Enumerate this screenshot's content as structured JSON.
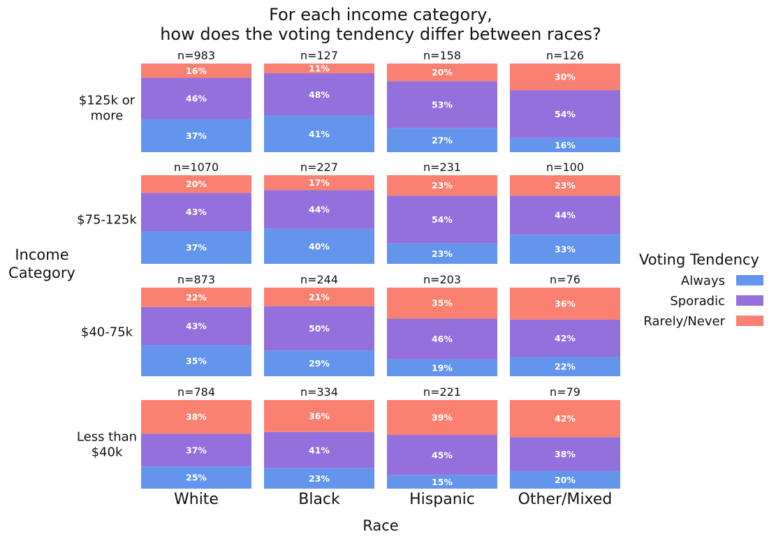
{
  "chart_data": {
    "type": "bar",
    "subtype": "faceted stacked 100% bar",
    "title_lines": [
      "For each income category,",
      "how does the voting tendency differ between races?"
    ],
    "xlabel": "Race",
    "ylabel_lines": [
      "Income",
      "Category"
    ],
    "columns": [
      "White",
      "Black",
      "Hispanic",
      "Other/Mixed"
    ],
    "rows": [
      {
        "label_lines": [
          "$125k or",
          "more"
        ]
      },
      {
        "label_lines": [
          "$75-125k"
        ]
      },
      {
        "label_lines": [
          "$40-75k"
        ]
      },
      {
        "label_lines": [
          "Less than",
          "$40k"
        ]
      }
    ],
    "legend": {
      "title": "Voting Tendency",
      "position": "right",
      "items": [
        {
          "name": "Always",
          "color": "#6495ED"
        },
        {
          "name": "Sporadic",
          "color": "#9370DB"
        },
        {
          "name": "Rarely/Never",
          "color": "#FA8072"
        }
      ]
    },
    "series": [
      "Always",
      "Sporadic",
      "Rarely/Never"
    ],
    "panels": [
      [
        {
          "n": "n=983",
          "values": [
            37,
            46,
            16
          ],
          "labels": [
            "37%",
            "46%",
            "16%"
          ]
        },
        {
          "n": "n=127",
          "values": [
            41,
            48,
            11
          ],
          "labels": [
            "41%",
            "48%",
            "11%"
          ]
        },
        {
          "n": "n=158",
          "values": [
            27,
            53,
            20
          ],
          "labels": [
            "27%",
            "53%",
            "20%"
          ]
        },
        {
          "n": "n=126",
          "values": [
            16,
            54,
            30
          ],
          "labels": [
            "16%",
            "54%",
            "30%"
          ]
        }
      ],
      [
        {
          "n": "n=1070",
          "values": [
            37,
            43,
            20
          ],
          "labels": [
            "37%",
            "43%",
            "20%"
          ]
        },
        {
          "n": "n=227",
          "values": [
            40,
            44,
            17
          ],
          "labels": [
            "40%",
            "44%",
            "17%"
          ]
        },
        {
          "n": "n=231",
          "values": [
            23,
            54,
            23
          ],
          "labels": [
            "23%",
            "54%",
            "23%"
          ]
        },
        {
          "n": "n=100",
          "values": [
            33,
            44,
            23
          ],
          "labels": [
            "33%",
            "44%",
            "23%"
          ]
        }
      ],
      [
        {
          "n": "n=873",
          "values": [
            35,
            43,
            22
          ],
          "labels": [
            "35%",
            "43%",
            "22%"
          ]
        },
        {
          "n": "n=244",
          "values": [
            29,
            50,
            21
          ],
          "labels": [
            "29%",
            "50%",
            "21%"
          ]
        },
        {
          "n": "n=203",
          "values": [
            19,
            46,
            35
          ],
          "labels": [
            "19%",
            "46%",
            "35%"
          ]
        },
        {
          "n": "n=76",
          "values": [
            22,
            42,
            36
          ],
          "labels": [
            "22%",
            "42%",
            "36%"
          ]
        }
      ],
      [
        {
          "n": "n=784",
          "values": [
            25,
            37,
            38
          ],
          "labels": [
            "25%",
            "37%",
            "38%"
          ]
        },
        {
          "n": "n=334",
          "values": [
            23,
            41,
            36
          ],
          "labels": [
            "23%",
            "41%",
            "36%"
          ]
        },
        {
          "n": "n=221",
          "values": [
            15,
            45,
            39
          ],
          "labels": [
            "15%",
            "45%",
            "39%"
          ]
        },
        {
          "n": "n=79",
          "values": [
            20,
            38,
            42
          ],
          "labels": [
            "20%",
            "38%",
            "42%"
          ]
        }
      ]
    ]
  }
}
